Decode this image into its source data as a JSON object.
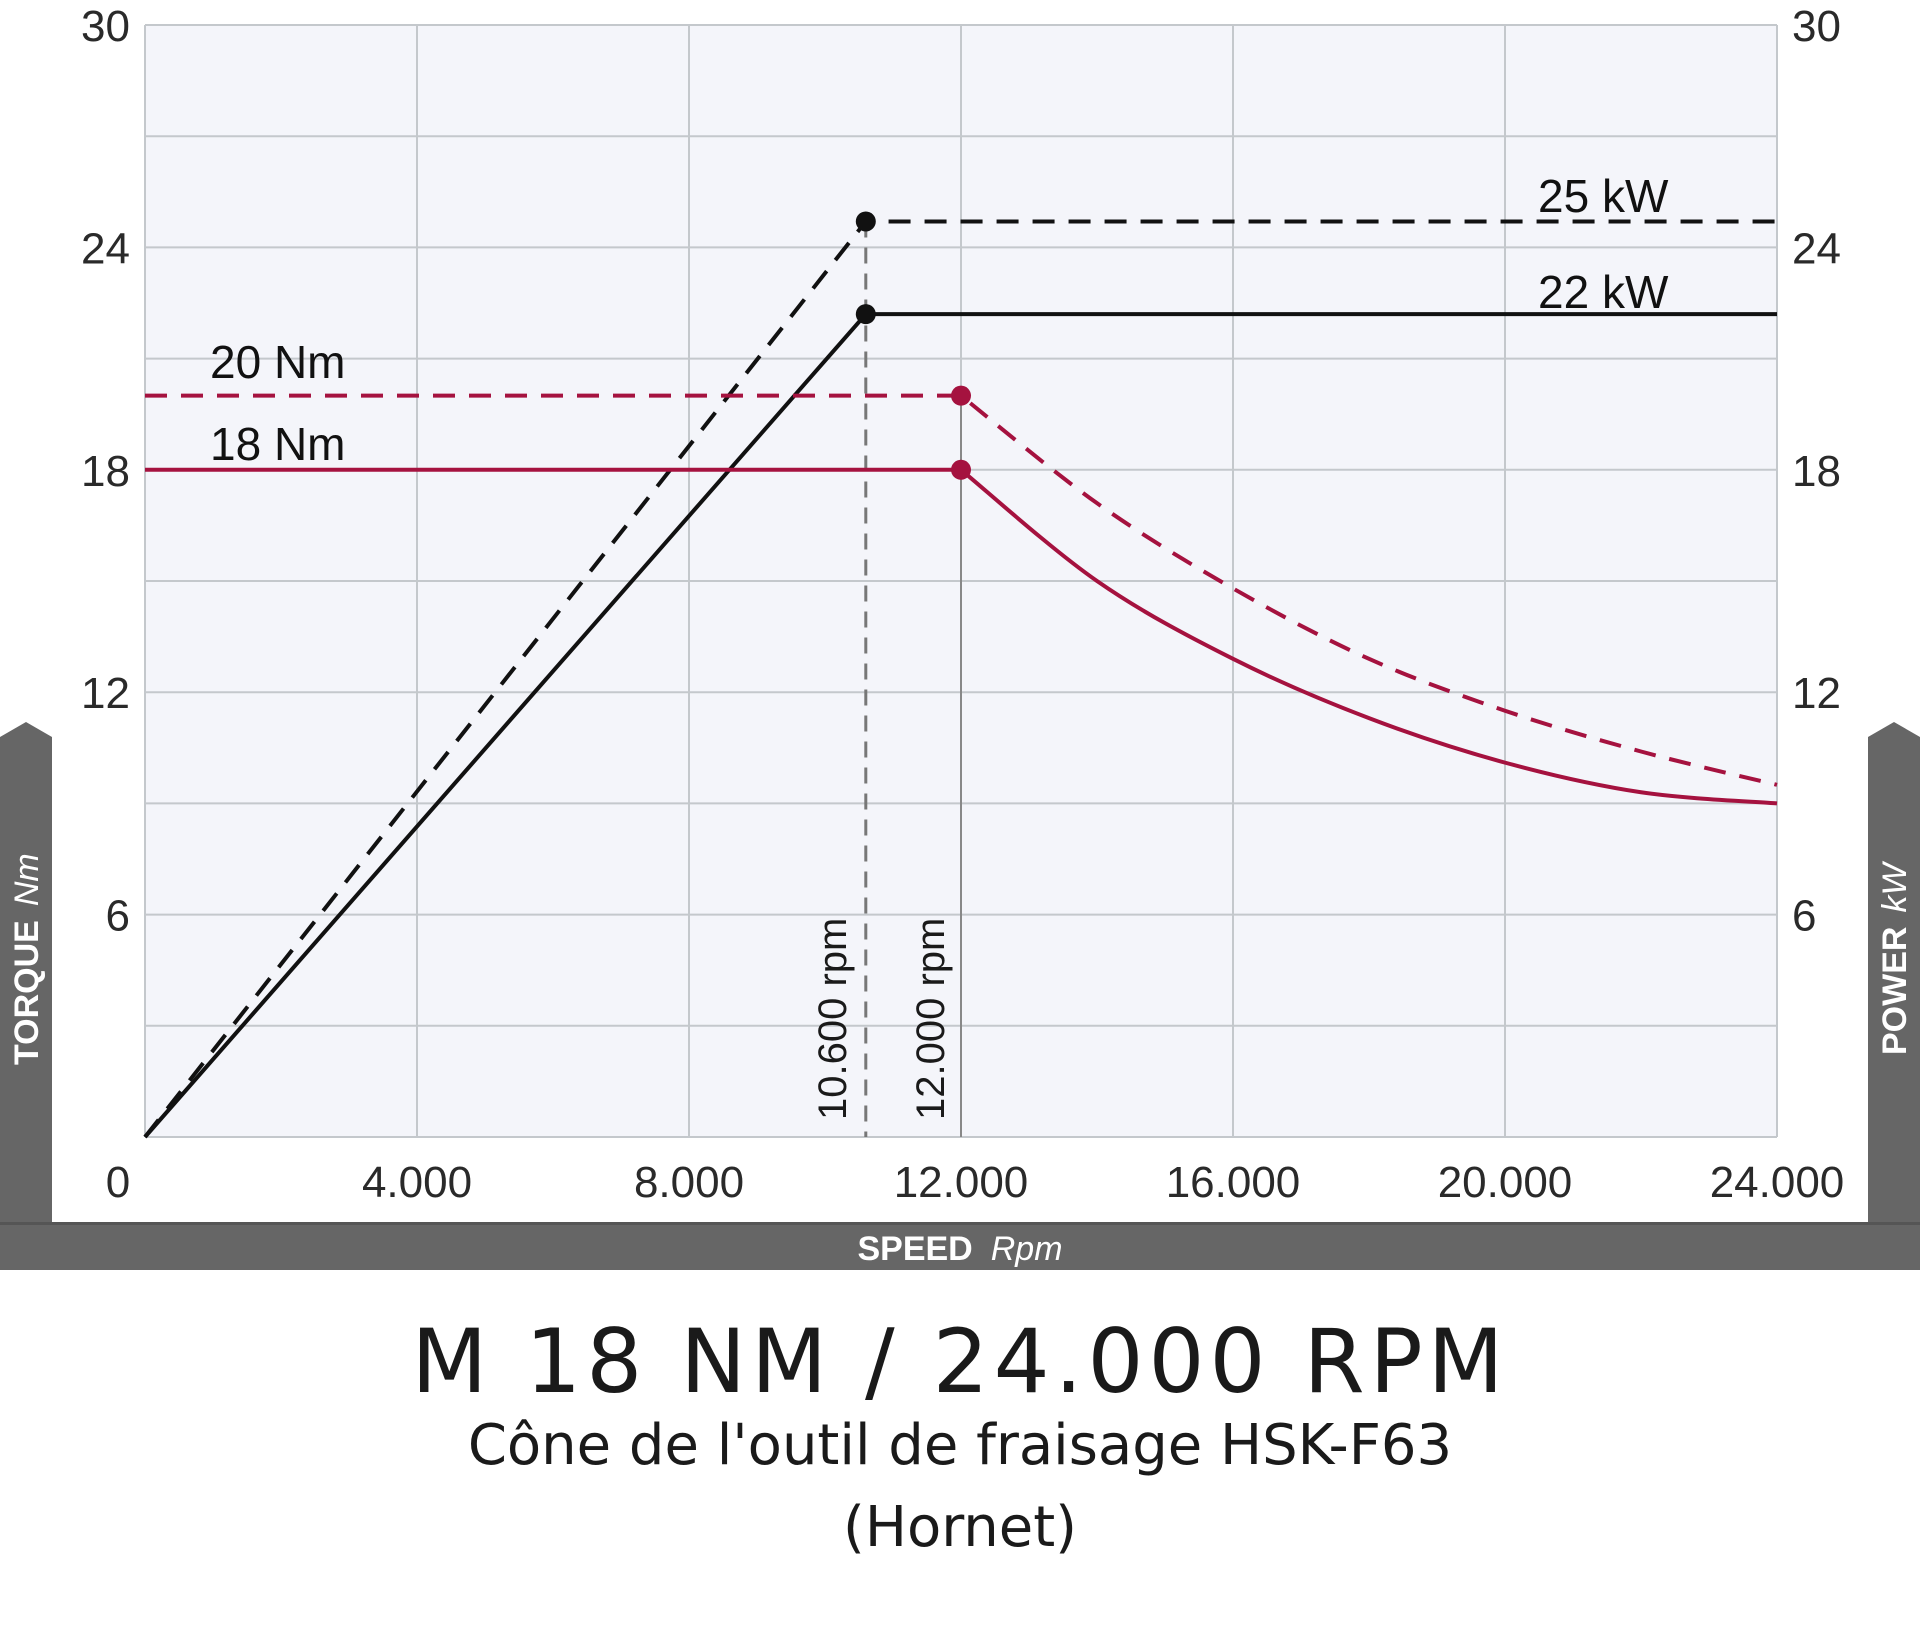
{
  "chart_data": {
    "type": "line",
    "xlabel": "SPEED",
    "xunit": "Rpm",
    "ylabel_left": "TORQUE",
    "yunit_left": "Nm",
    "ylabel_right": "POWER",
    "yunit_right": "kW",
    "xlim": [
      0,
      24000
    ],
    "ylim": [
      0,
      30
    ],
    "x_ticks": [
      "0",
      "4.000",
      "8.000",
      "12.000",
      "16.000",
      "20.000",
      "24.000"
    ],
    "y_ticks": [
      "6",
      "12",
      "18",
      "24",
      "30"
    ],
    "grid": true,
    "colors": {
      "power": "#111111",
      "torque": "#a5123f",
      "background": "#f4f5fa",
      "grid": "#c4c8cc",
      "axis_band": "#666666"
    },
    "series": [
      {
        "name": "25 kW",
        "axis": "right",
        "style": "dashed",
        "color": "#111111",
        "x": [
          0,
          10600,
          24000
        ],
        "y": [
          0,
          24.7,
          24.7
        ]
      },
      {
        "name": "22 kW",
        "axis": "right",
        "style": "solid",
        "color": "#111111",
        "x": [
          0,
          10600,
          24000
        ],
        "y": [
          0,
          22.2,
          22.2
        ]
      },
      {
        "name": "20 Nm",
        "axis": "left",
        "style": "dashed",
        "color": "#a5123f",
        "x": [
          0,
          12000,
          14000,
          16000,
          18000,
          20000,
          22000,
          24000
        ],
        "y": [
          20,
          20,
          17.1,
          14.8,
          12.9,
          11.5,
          10.4,
          9.5
        ]
      },
      {
        "name": "18 Nm",
        "axis": "left",
        "style": "solid",
        "color": "#a5123f",
        "x": [
          0,
          12000,
          14000,
          16000,
          18000,
          20000,
          22000,
          24000
        ],
        "y": [
          18,
          18,
          15.0,
          12.9,
          11.3,
          10.1,
          9.3,
          9.0
        ]
      }
    ],
    "markers": [
      {
        "x": 10600,
        "y": 24.7,
        "color": "#111111"
      },
      {
        "x": 10600,
        "y": 22.2,
        "color": "#111111"
      },
      {
        "x": 12000,
        "y": 20,
        "color": "#a5123f"
      },
      {
        "x": 12000,
        "y": 18,
        "color": "#a5123f"
      }
    ],
    "annotations": [
      {
        "text": "10.600 rpm",
        "x": 10600
      },
      {
        "text": "12.000 rpm",
        "x": 12000
      }
    ]
  },
  "caption": {
    "title": "M 18 NM / 24.000 RPM",
    "subtitle": "Cône de l'outil de fraisage HSK-F63",
    "subtitle2": "(Hornet)"
  }
}
